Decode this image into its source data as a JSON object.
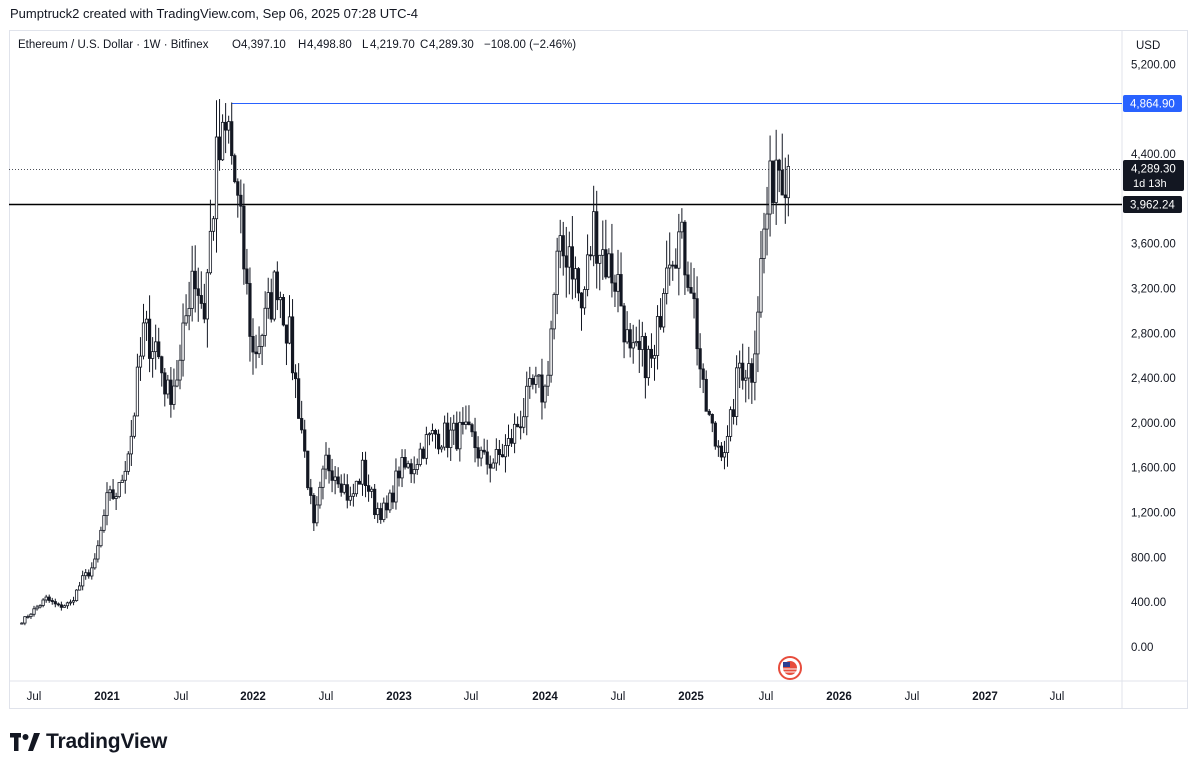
{
  "header": {
    "created_by": "Pumptruck2 created with TradingView.com, Sep 06, 2025 07:28 UTC-4"
  },
  "symbol_info": {
    "name": "Ethereum / U.S. Dollar · 1W · Bitfinex",
    "open_label": "O",
    "open": "4,397.10",
    "high_label": "H",
    "high": "4,498.80",
    "low_label": "L",
    "low": "4,219.70",
    "close_label": "C",
    "close": "4,289.30",
    "change": "−108.00 (−2.46%)"
  },
  "price_axis": {
    "currency": "USD",
    "ticks": [
      "5,200.00",
      "4,400.00",
      "3,600.00",
      "3,200.00",
      "2,800.00",
      "2,400.00",
      "2,000.00",
      "1,600.00",
      "1,200.00",
      "800.00",
      "400.00",
      "0.00"
    ]
  },
  "price_labels": {
    "ath": "4,864.90",
    "last": "4,289.30",
    "countdown": "1d 13h",
    "support": "3,962.24"
  },
  "time_axis": {
    "labels": [
      "Jul",
      "2021",
      "Jul",
      "2022",
      "Jul",
      "2023",
      "Jul",
      "2024",
      "Jul",
      "2025",
      "Jul",
      "2026",
      "Jul",
      "2027",
      "Jul"
    ]
  },
  "footer": {
    "brand": "TradingView"
  },
  "colors": {
    "candle": "#131722",
    "candle_up_body": "#ffffff",
    "ath_line": "#2962ff",
    "support_line": "#000000",
    "label_dark": "#131722",
    "label_blue": "#2962ff"
  },
  "chart_data": {
    "type": "candlestick",
    "interval": "1W",
    "currency": "USD",
    "y_ticks": [
      0,
      400,
      800,
      1200,
      1600,
      2000,
      2400,
      2800,
      3200,
      3600,
      4400,
      5200
    ],
    "horizontal_levels": [
      {
        "label": "4,864.90",
        "value": 4864.9,
        "color": "#2962ff",
        "style": "solid"
      },
      {
        "label": "3,962.24",
        "value": 3962.24,
        "color": "#000000",
        "style": "solid"
      },
      {
        "label": "4,289.30",
        "value": 4289.3,
        "color": "#131722",
        "style": "dotted"
      }
    ],
    "x_labels": [
      "Jul",
      "2021",
      "Jul",
      "2022",
      "Jul",
      "2023",
      "Jul",
      "2024",
      "Jul",
      "2025",
      "Jul",
      "2026",
      "Jul",
      "2027",
      "Jul"
    ],
    "series": [
      {
        "date": "2020-06",
        "close": 230
      },
      {
        "date": "2020-07",
        "close": 330
      },
      {
        "date": "2020-08",
        "close": 430
      },
      {
        "date": "2020-09",
        "close": 360
      },
      {
        "date": "2020-10",
        "close": 390
      },
      {
        "date": "2020-11",
        "close": 600
      },
      {
        "date": "2020-12",
        "close": 740
      },
      {
        "date": "2021-01",
        "close": 1300
      },
      {
        "date": "2021-02",
        "close": 1400
      },
      {
        "date": "2021-03",
        "close": 1900
      },
      {
        "date": "2021-04",
        "close": 2800
      },
      {
        "date": "2021-05",
        "close": 2700
      },
      {
        "date": "2021-06",
        "close": 2250
      },
      {
        "date": "2021-07",
        "close": 2500
      },
      {
        "date": "2021-08",
        "close": 3400
      },
      {
        "date": "2021-09",
        "close": 3000
      },
      {
        "date": "2021-10",
        "close": 4300
      },
      {
        "date": "2021-11",
        "close": 4600
      },
      {
        "date": "2021-12",
        "close": 3700
      },
      {
        "date": "2022-01",
        "close": 2600
      },
      {
        "date": "2022-02",
        "close": 2900
      },
      {
        "date": "2022-03",
        "close": 3300
      },
      {
        "date": "2022-04",
        "close": 2750
      },
      {
        "date": "2022-05",
        "close": 1950
      },
      {
        "date": "2022-06",
        "close": 1050
      },
      {
        "date": "2022-07",
        "close": 1650
      },
      {
        "date": "2022-08",
        "close": 1550
      },
      {
        "date": "2022-09",
        "close": 1300
      },
      {
        "date": "2022-10",
        "close": 1580
      },
      {
        "date": "2022-11",
        "close": 1250
      },
      {
        "date": "2022-12",
        "close": 1200
      },
      {
        "date": "2023-01",
        "close": 1580
      },
      {
        "date": "2023-02",
        "close": 1600
      },
      {
        "date": "2023-03",
        "close": 1800
      },
      {
        "date": "2023-04",
        "close": 1900
      },
      {
        "date": "2023-05",
        "close": 1880
      },
      {
        "date": "2023-06",
        "close": 1900
      },
      {
        "date": "2023-07",
        "close": 1850
      },
      {
        "date": "2023-08",
        "close": 1650
      },
      {
        "date": "2023-09",
        "close": 1670
      },
      {
        "date": "2023-10",
        "close": 1800
      },
      {
        "date": "2023-11",
        "close": 2050
      },
      {
        "date": "2023-12",
        "close": 2300
      },
      {
        "date": "2024-01",
        "close": 2280
      },
      {
        "date": "2024-02",
        "close": 3400
      },
      {
        "date": "2024-03",
        "close": 3600
      },
      {
        "date": "2024-04",
        "close": 3000
      },
      {
        "date": "2024-05",
        "close": 3750
      },
      {
        "date": "2024-06",
        "close": 3450
      },
      {
        "date": "2024-07",
        "close": 3250
      },
      {
        "date": "2024-08",
        "close": 2550
      },
      {
        "date": "2024-09",
        "close": 2600
      },
      {
        "date": "2024-10",
        "close": 2520
      },
      {
        "date": "2024-11",
        "close": 3600
      },
      {
        "date": "2024-12",
        "close": 3650
      },
      {
        "date": "2025-01",
        "close": 3300
      },
      {
        "date": "2025-02",
        "close": 2230
      },
      {
        "date": "2025-03",
        "close": 1820
      },
      {
        "date": "2025-04",
        "close": 1800
      },
      {
        "date": "2025-05",
        "close": 2530
      },
      {
        "date": "2025-06",
        "close": 2480
      },
      {
        "date": "2025-07",
        "close": 3700
      },
      {
        "date": "2025-08",
        "close": 4400
      },
      {
        "date": "2025-09",
        "close": 4289.3
      }
    ]
  }
}
